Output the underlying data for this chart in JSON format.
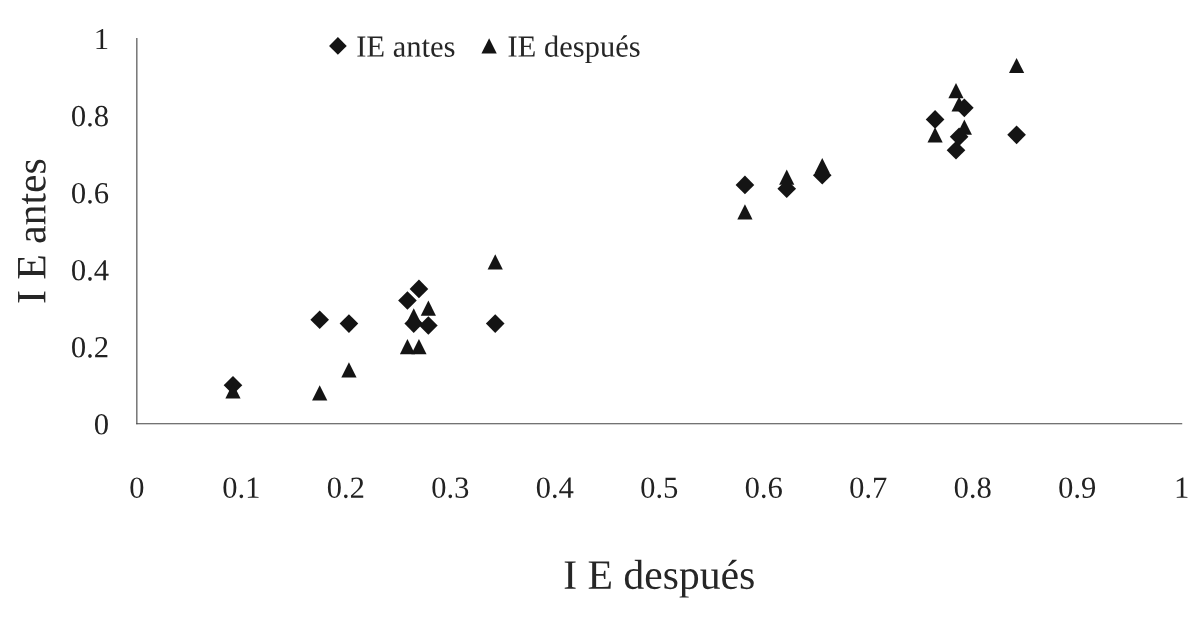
{
  "chart_data": {
    "type": "scatter",
    "xlabel": "I E después",
    "ylabel": "I E antes",
    "xlim": [
      0,
      1
    ],
    "xticks": [
      0,
      0.1,
      0.2,
      0.3,
      0.4,
      0.5,
      0.6,
      0.7,
      0.8,
      0.9,
      1
    ],
    "ylim": [
      0,
      1
    ],
    "yticks": [
      0,
      0.2,
      0.4,
      0.6,
      0.8,
      1
    ],
    "grid": false,
    "legend": "top",
    "series": [
      {
        "name": "IE antes",
        "color": "#141414",
        "marker": "diamond",
        "x": [
          0.092,
          0.175,
          0.203,
          0.259,
          0.27,
          0.265,
          0.279,
          0.343,
          0.582,
          0.622,
          0.656,
          0.764,
          0.784,
          0.787,
          0.792,
          0.842
        ],
        "values": [
          0.1,
          0.27,
          0.26,
          0.32,
          0.35,
          0.26,
          0.255,
          0.26,
          0.62,
          0.61,
          0.645,
          0.79,
          0.71,
          0.745,
          0.82,
          0.75
        ]
      },
      {
        "name": "IE después",
        "color": "#141414",
        "marker": "triangle",
        "x": [
          0.092,
          0.175,
          0.203,
          0.259,
          0.27,
          0.265,
          0.279,
          0.343,
          0.582,
          0.622,
          0.656,
          0.764,
          0.784,
          0.787,
          0.792,
          0.842
        ],
        "values": [
          0.085,
          0.08,
          0.14,
          0.2,
          0.2,
          0.28,
          0.3,
          0.42,
          0.55,
          0.64,
          0.67,
          0.75,
          0.865,
          0.83,
          0.77,
          0.93
        ]
      }
    ]
  }
}
